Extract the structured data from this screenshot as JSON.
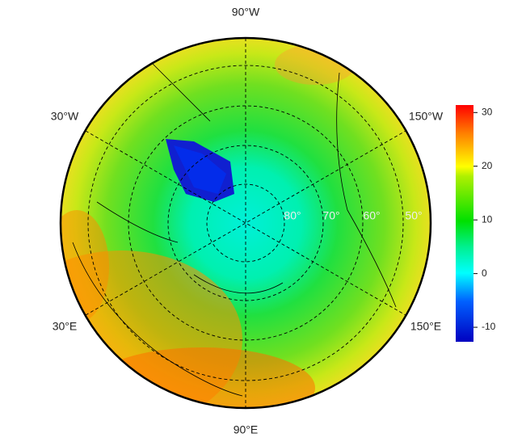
{
  "map": {
    "lon_labels": [
      "90°W",
      "30°W",
      "150°W",
      "30°E",
      "150°E",
      "90°E"
    ],
    "lat_labels": [
      "80°",
      "70°",
      "60°",
      "50°"
    ],
    "colorbar": {
      "lim": [
        -12.7,
        31.4
      ],
      "ticks": [
        -10,
        0,
        10,
        20,
        30
      ]
    }
  }
}
